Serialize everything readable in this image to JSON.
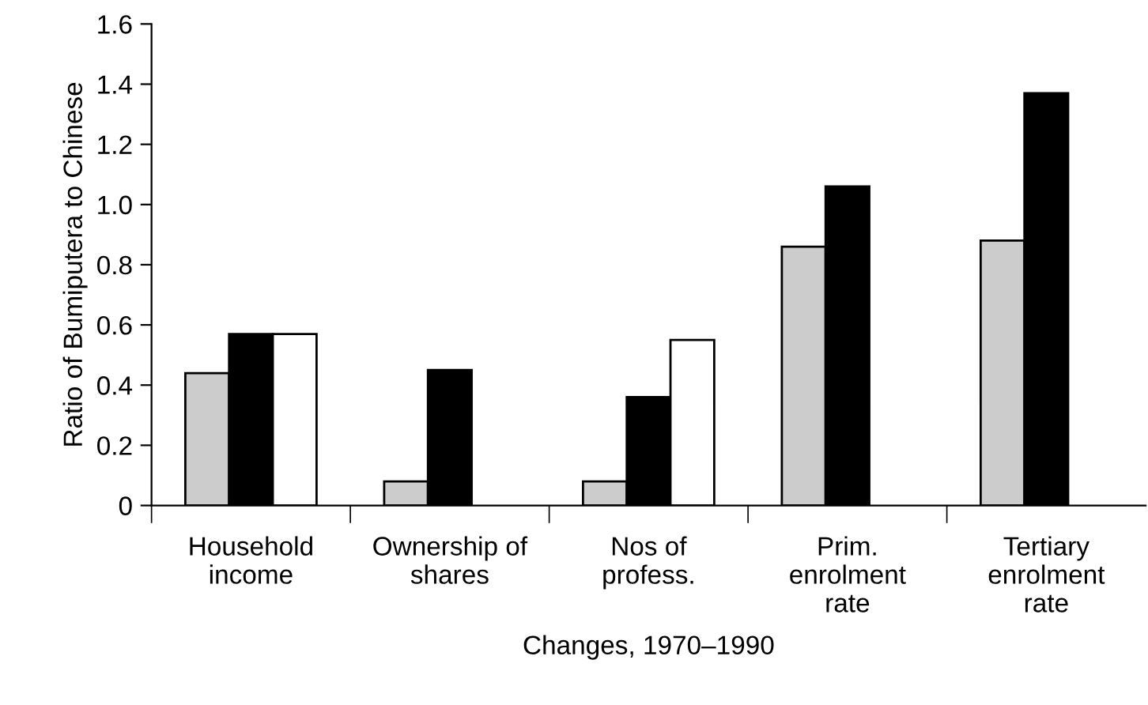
{
  "chart_data": {
    "type": "bar",
    "xlabel": "Changes, 1970–1990",
    "ylabel": "Ratio of Bumiputera to Chinese",
    "categories": [
      "Household\nincome",
      "Ownership of\nshares",
      "Nos of\nprofess.",
      "Prim.\nenrolment\nrate",
      "Tertiary\nenrolment\nrate"
    ],
    "series": [
      {
        "color": "#cccccc",
        "values": [
          0.44,
          0.08,
          0.08,
          0.86,
          0.88
        ]
      },
      {
        "color": "#000000",
        "values": [
          0.57,
          0.45,
          0.36,
          1.06,
          1.37
        ]
      },
      {
        "color": "#ffffff",
        "values": [
          0.57,
          null,
          0.55,
          null,
          null
        ]
      }
    ],
    "ylim": [
      0,
      1.6
    ],
    "yticks": [
      0,
      {
        "value": 0.2,
        "label": "0.2"
      },
      {
        "value": 0.4,
        "label": "0.4"
      },
      {
        "value": 0.6,
        "label": "0.6"
      },
      {
        "value": 0.8,
        "label": "0.8"
      },
      {
        "value": 1.0,
        "label": "1.0"
      },
      {
        "value": 1.2,
        "label": "1.2"
      },
      {
        "value": 1.4,
        "label": "1.4"
      },
      {
        "value": 1.6,
        "label": "1.6"
      }
    ],
    "grid": false,
    "legend": false
  }
}
